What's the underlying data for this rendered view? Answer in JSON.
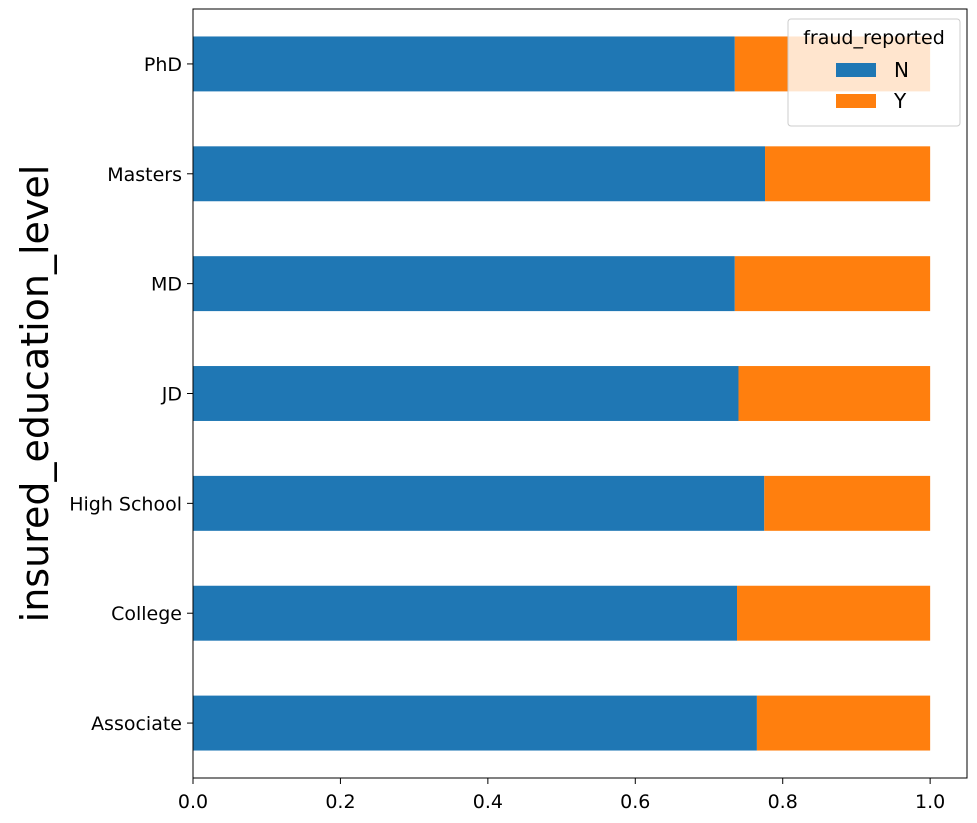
{
  "chart_data": {
    "type": "bar",
    "orientation": "horizontal",
    "stacked": true,
    "categories": [
      "PhD",
      "Masters",
      "MD",
      "JD",
      "High School",
      "College",
      "Associate"
    ],
    "series": [
      {
        "name": "N",
        "color": "#1f77b4",
        "values": [
          0.735,
          0.776,
          0.735,
          0.74,
          0.775,
          0.738,
          0.765
        ]
      },
      {
        "name": "Y",
        "color": "#ff7f0e",
        "values": [
          0.265,
          0.224,
          0.265,
          0.26,
          0.225,
          0.262,
          0.235
        ]
      }
    ],
    "title": "",
    "xlabel": "",
    "ylabel": "insured_education_level",
    "xlim": [
      0,
      1.05
    ],
    "xticks": [
      "0.0",
      "0.2",
      "0.4",
      "0.6",
      "0.8",
      "1.0"
    ],
    "grid": false,
    "legend": {
      "title": "fraud_reported",
      "position": "upper-right"
    }
  }
}
